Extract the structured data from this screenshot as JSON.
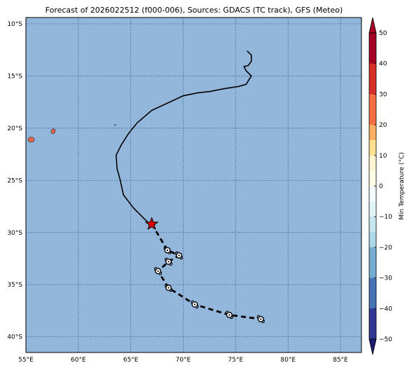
{
  "title": "Forecast of 2026022512 (f000-006), Sources: GDACS (TC track), GFS (Meteo)",
  "map": {
    "lon_range": [
      55,
      87
    ],
    "lat_range": [
      -41.5,
      -9.4
    ],
    "grid": true,
    "ocean_color": "#93b6db",
    "land_color": "#e8644a",
    "lon_ticks": [
      {
        "value": 55,
        "label": "55°E"
      },
      {
        "value": 60,
        "label": "60°E"
      },
      {
        "value": 65,
        "label": "65°E"
      },
      {
        "value": 70,
        "label": "70°E"
      },
      {
        "value": 75,
        "label": "75°E"
      },
      {
        "value": 80,
        "label": "80°E"
      },
      {
        "value": 85,
        "label": "85°E"
      }
    ],
    "lat_ticks": [
      {
        "value": -10,
        "label": "10°S"
      },
      {
        "value": -15,
        "label": "15°S"
      },
      {
        "value": -20,
        "label": "20°S"
      },
      {
        "value": -25,
        "label": "25°S"
      },
      {
        "value": -30,
        "label": "30°S"
      },
      {
        "value": -35,
        "label": "35°S"
      },
      {
        "value": -40,
        "label": "40°S"
      }
    ],
    "islands": [
      {
        "name": "reunion",
        "lon": 55.5,
        "lat": -21.1
      },
      {
        "name": "mauritius",
        "lon": 57.6,
        "lat": -20.3
      }
    ],
    "past_track": [
      [
        76.1,
        -12.6
      ],
      [
        76.5,
        -13.0
      ],
      [
        76.5,
        -13.6
      ],
      [
        76.2,
        -14.0
      ],
      [
        75.8,
        -14.1
      ],
      [
        76.0,
        -14.5
      ],
      [
        76.5,
        -15.0
      ],
      [
        76.0,
        -15.8
      ],
      [
        75.3,
        -16.0
      ],
      [
        74.0,
        -16.2
      ],
      [
        73.0,
        -16.4
      ],
      [
        72.5,
        -16.5
      ],
      [
        71.5,
        -16.6
      ],
      [
        70.0,
        -16.9
      ],
      [
        68.5,
        -17.6
      ],
      [
        67.0,
        -18.3
      ],
      [
        65.6,
        -19.5
      ],
      [
        64.8,
        -20.5
      ],
      [
        64.1,
        -21.6
      ],
      [
        63.6,
        -22.6
      ],
      [
        63.7,
        -23.9
      ],
      [
        64.0,
        -25.0
      ],
      [
        64.3,
        -26.4
      ],
      [
        65.3,
        -27.7
      ],
      [
        66.8,
        -29.2
      ]
    ],
    "current_position": {
      "lon": 67.0,
      "lat": -29.2
    },
    "forecast_track": [
      [
        67.0,
        -29.2
      ],
      [
        68.5,
        -31.7
      ],
      [
        69.6,
        -32.2
      ],
      [
        68.6,
        -32.8
      ],
      [
        67.6,
        -33.7
      ],
      [
        68.6,
        -35.3
      ],
      [
        71.1,
        -36.9
      ],
      [
        74.4,
        -37.9
      ],
      [
        77.4,
        -38.3
      ]
    ],
    "forecast_points": [
      [
        68.5,
        -31.7
      ],
      [
        69.6,
        -32.2
      ],
      [
        68.6,
        -32.8
      ],
      [
        67.6,
        -33.7
      ],
      [
        68.6,
        -35.3
      ],
      [
        71.1,
        -36.9
      ],
      [
        74.4,
        -37.9
      ],
      [
        77.4,
        -38.3
      ]
    ]
  },
  "colorbar": {
    "label": "Min Temperature (°C)",
    "ticks": [
      50,
      40,
      30,
      20,
      10,
      0,
      -10,
      -20,
      -30,
      -40,
      -50
    ],
    "levels": [
      {
        "from": 45,
        "to": 50,
        "color": "#a50026"
      },
      {
        "from": 40,
        "to": 45,
        "color": "#a50026"
      },
      {
        "from": 35,
        "to": 40,
        "color": "#d73027"
      },
      {
        "from": 30,
        "to": 35,
        "color": "#d73027"
      },
      {
        "from": 25,
        "to": 30,
        "color": "#f46d43"
      },
      {
        "from": 20,
        "to": 25,
        "color": "#f46d43"
      },
      {
        "from": 15,
        "to": 20,
        "color": "#fdae61"
      },
      {
        "from": 10,
        "to": 15,
        "color": "#fee090"
      },
      {
        "from": 5,
        "to": 10,
        "color": "#fff5d2"
      },
      {
        "from": 0,
        "to": 5,
        "color": "#ffffe5"
      },
      {
        "from": -5,
        "to": 0,
        "color": "#f3fbfd"
      },
      {
        "from": -10,
        "to": -5,
        "color": "#e0f3f8"
      },
      {
        "from": -15,
        "to": -10,
        "color": "#c6e6f0"
      },
      {
        "from": -20,
        "to": -15,
        "color": "#abd9e9"
      },
      {
        "from": -25,
        "to": -20,
        "color": "#74add1"
      },
      {
        "from": -30,
        "to": -25,
        "color": "#74add1"
      },
      {
        "from": -35,
        "to": -30,
        "color": "#4575b4"
      },
      {
        "from": -40,
        "to": -35,
        "color": "#4575b4"
      },
      {
        "from": -45,
        "to": -40,
        "color": "#313695"
      },
      {
        "from": -50,
        "to": -45,
        "color": "#313695"
      }
    ],
    "over_color": "#a50026",
    "under_color": "#1a1a6e"
  }
}
